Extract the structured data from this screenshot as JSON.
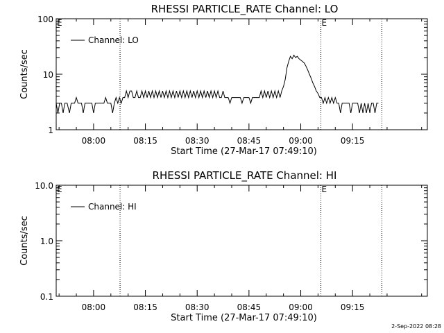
{
  "footer": "2-Sep-2022 08:28",
  "chart_data": [
    {
      "type": "line",
      "title": "RHESSI PARTICLE_RATE Channel: LO",
      "xlabel": "Start Time (27-Mar-17 07:49:10)",
      "ylabel": "Counts/sec",
      "yscale": "log",
      "ylim": [
        1,
        100
      ],
      "yticks": [
        {
          "value": 1,
          "label": "1"
        },
        {
          "value": 10,
          "label": "10"
        },
        {
          "value": 100,
          "label": "100"
        }
      ],
      "xlim": [
        "07:49:10",
        "09:36:40"
      ],
      "xticks": [
        "08:00",
        "08:15",
        "08:30",
        "08:45",
        "09:00",
        "09:15"
      ],
      "vlines": [
        "08:07:40",
        "09:05:50",
        "09:23:30"
      ],
      "markers": [
        {
          "label": "E",
          "x": "07:49:10"
        },
        {
          "label": "E",
          "x": "09:05:50"
        }
      ],
      "legend": {
        "position": "top-left",
        "entries": [
          "Channel: LO"
        ]
      },
      "series": [
        {
          "name": "Channel: LO",
          "points": [
            [
              "07:49:10",
              3
            ],
            [
              "07:49:40",
              2
            ],
            [
              "07:50:10",
              3
            ],
            [
              "07:50:40",
              3
            ],
            [
              "07:51:10",
              2
            ],
            [
              "07:51:40",
              3
            ],
            [
              "07:52:20",
              3
            ],
            [
              "07:53:00",
              2
            ],
            [
              "07:53:30",
              3
            ],
            [
              "07:54:30",
              3
            ],
            [
              "07:55:00",
              3.8
            ],
            [
              "07:55:30",
              3
            ],
            [
              "07:56:30",
              3
            ],
            [
              "07:57:00",
              2
            ],
            [
              "07:57:30",
              3
            ],
            [
              "07:59:30",
              3
            ],
            [
              "08:00:00",
              2
            ],
            [
              "08:00:30",
              3
            ],
            [
              "08:03:00",
              3
            ],
            [
              "08:03:30",
              3.8
            ],
            [
              "08:04:00",
              3
            ],
            [
              "08:05:00",
              3
            ],
            [
              "08:05:30",
              2
            ],
            [
              "08:06:00",
              3
            ],
            [
              "08:06:30",
              3.8
            ],
            [
              "08:07:00",
              3
            ],
            [
              "08:07:30",
              3.8
            ],
            [
              "08:08:00",
              3
            ],
            [
              "08:08:30",
              3.8
            ],
            [
              "08:09:00",
              3.8
            ],
            [
              "08:09:30",
              5
            ],
            [
              "08:10:00",
              3.8
            ],
            [
              "08:10:30",
              5
            ],
            [
              "08:11:00",
              5
            ],
            [
              "08:11:30",
              3.8
            ],
            [
              "08:12:00",
              3.8
            ],
            [
              "08:12:30",
              5
            ],
            [
              "08:13:00",
              3.8
            ],
            [
              "08:13:30",
              3.8
            ],
            [
              "08:14:00",
              5
            ],
            [
              "08:14:30",
              3.8
            ],
            [
              "08:15:00",
              5
            ],
            [
              "08:15:30",
              3.8
            ],
            [
              "08:16:00",
              5
            ],
            [
              "08:16:30",
              3.8
            ],
            [
              "08:17:00",
              5
            ],
            [
              "08:17:30",
              3.8
            ],
            [
              "08:18:00",
              5
            ],
            [
              "08:18:30",
              3.8
            ],
            [
              "08:19:00",
              5
            ],
            [
              "08:19:30",
              3.8
            ],
            [
              "08:20:00",
              5
            ],
            [
              "08:20:30",
              3.8
            ],
            [
              "08:21:00",
              5
            ],
            [
              "08:21:30",
              3.8
            ],
            [
              "08:22:00",
              5
            ],
            [
              "08:22:30",
              3.8
            ],
            [
              "08:23:00",
              5
            ],
            [
              "08:23:30",
              3.8
            ],
            [
              "08:24:00",
              5
            ],
            [
              "08:24:30",
              3.8
            ],
            [
              "08:25:00",
              5
            ],
            [
              "08:25:30",
              3.8
            ],
            [
              "08:26:00",
              5
            ],
            [
              "08:26:30",
              3.8
            ],
            [
              "08:27:00",
              5
            ],
            [
              "08:27:30",
              3.8
            ],
            [
              "08:28:00",
              5
            ],
            [
              "08:28:30",
              3.8
            ],
            [
              "08:29:00",
              5
            ],
            [
              "08:29:30",
              3.8
            ],
            [
              "08:30:00",
              5
            ],
            [
              "08:30:30",
              3.8
            ],
            [
              "08:31:00",
              5
            ],
            [
              "08:31:30",
              3.8
            ],
            [
              "08:32:00",
              5
            ],
            [
              "08:32:30",
              3.8
            ],
            [
              "08:33:00",
              5
            ],
            [
              "08:33:30",
              3.8
            ],
            [
              "08:34:00",
              5
            ],
            [
              "08:34:30",
              3.8
            ],
            [
              "08:35:00",
              5
            ],
            [
              "08:35:30",
              3.8
            ],
            [
              "08:36:00",
              5
            ],
            [
              "08:36:30",
              3.8
            ],
            [
              "08:37:00",
              3.8
            ],
            [
              "08:37:30",
              5
            ],
            [
              "08:38:00",
              3.8
            ],
            [
              "08:39:00",
              3.8
            ],
            [
              "08:39:30",
              3
            ],
            [
              "08:40:00",
              3.8
            ],
            [
              "08:41:00",
              3.8
            ],
            [
              "08:41:30",
              3.8
            ],
            [
              "08:42:30",
              3.8
            ],
            [
              "08:43:00",
              3
            ],
            [
              "08:43:30",
              3.8
            ],
            [
              "08:45:00",
              3.8
            ],
            [
              "08:45:30",
              3
            ],
            [
              "08:46:00",
              3.8
            ],
            [
              "08:48:00",
              3.8
            ],
            [
              "08:48:30",
              5
            ],
            [
              "08:49:00",
              3.8
            ],
            [
              "08:49:30",
              5
            ],
            [
              "08:50:00",
              3.8
            ],
            [
              "08:50:30",
              5
            ],
            [
              "08:51:00",
              3.8
            ],
            [
              "08:51:30",
              5
            ],
            [
              "08:52:00",
              3.8
            ],
            [
              "08:52:30",
              5
            ],
            [
              "08:53:00",
              3.8
            ],
            [
              "08:53:30",
              5
            ],
            [
              "08:54:00",
              3.8
            ],
            [
              "08:54:30",
              5
            ],
            [
              "08:55:00",
              6
            ],
            [
              "08:55:30",
              8
            ],
            [
              "08:56:00",
              13
            ],
            [
              "08:56:30",
              17
            ],
            [
              "08:57:00",
              21
            ],
            [
              "08:57:30",
              19
            ],
            [
              "08:58:00",
              22
            ],
            [
              "08:58:30",
              20
            ],
            [
              "08:59:00",
              21
            ],
            [
              "08:59:30",
              19
            ],
            [
              "09:00:00",
              18
            ],
            [
              "09:00:30",
              17
            ],
            [
              "09:01:00",
              16
            ],
            [
              "09:01:30",
              14
            ],
            [
              "09:02:00",
              12
            ],
            [
              "09:02:30",
              10
            ],
            [
              "09:03:00",
              8.5
            ],
            [
              "09:03:30",
              7
            ],
            [
              "09:04:00",
              6
            ],
            [
              "09:04:30",
              5
            ],
            [
              "09:05:00",
              4.5
            ],
            [
              "09:05:30",
              3.8
            ],
            [
              "09:06:00",
              3.8
            ],
            [
              "09:06:30",
              3
            ],
            [
              "09:07:00",
              3.8
            ],
            [
              "09:07:30",
              3
            ],
            [
              "09:08:00",
              3.8
            ],
            [
              "09:08:30",
              3
            ],
            [
              "09:09:00",
              3.8
            ],
            [
              "09:09:30",
              3
            ],
            [
              "09:10:00",
              3.8
            ],
            [
              "09:10:30",
              3
            ],
            [
              "09:11:00",
              3
            ],
            [
              "09:11:30",
              2
            ],
            [
              "09:12:00",
              3
            ],
            [
              "09:14:00",
              3
            ],
            [
              "09:14:30",
              2
            ],
            [
              "09:15:00",
              3
            ],
            [
              "09:16:30",
              3
            ],
            [
              "09:17:00",
              2
            ],
            [
              "09:17:30",
              3
            ],
            [
              "09:18:00",
              2
            ],
            [
              "09:18:30",
              3
            ],
            [
              "09:19:00",
              2
            ],
            [
              "09:19:30",
              3
            ],
            [
              "09:20:00",
              2
            ],
            [
              "09:20:30",
              3
            ],
            [
              "09:21:00",
              3
            ],
            [
              "09:21:30",
              2
            ],
            [
              "09:22:00",
              3
            ],
            [
              "09:22:30",
              3
            ]
          ]
        }
      ]
    },
    {
      "type": "line",
      "title": "RHESSI PARTICLE_RATE Channel: HI",
      "xlabel": "Start Time (27-Mar-17 07:49:10)",
      "ylabel": "Counts/sec",
      "yscale": "log",
      "ylim": [
        0.1,
        10
      ],
      "yticks": [
        {
          "value": 0.1,
          "label": "0.1"
        },
        {
          "value": 1,
          "label": "1.0"
        },
        {
          "value": 10,
          "label": "10.0"
        }
      ],
      "xlim": [
        "07:49:10",
        "09:36:40"
      ],
      "xticks": [
        "08:00",
        "08:15",
        "08:30",
        "08:45",
        "09:00",
        "09:15"
      ],
      "vlines": [
        "08:07:40",
        "09:05:50",
        "09:23:30"
      ],
      "markers": [
        {
          "label": "E",
          "x": "07:49:10"
        },
        {
          "label": "E",
          "x": "09:05:50"
        }
      ],
      "legend": {
        "position": "top-left",
        "entries": [
          "Channel: HI"
        ]
      },
      "series": [
        {
          "name": "Channel: HI",
          "points": []
        }
      ]
    }
  ]
}
